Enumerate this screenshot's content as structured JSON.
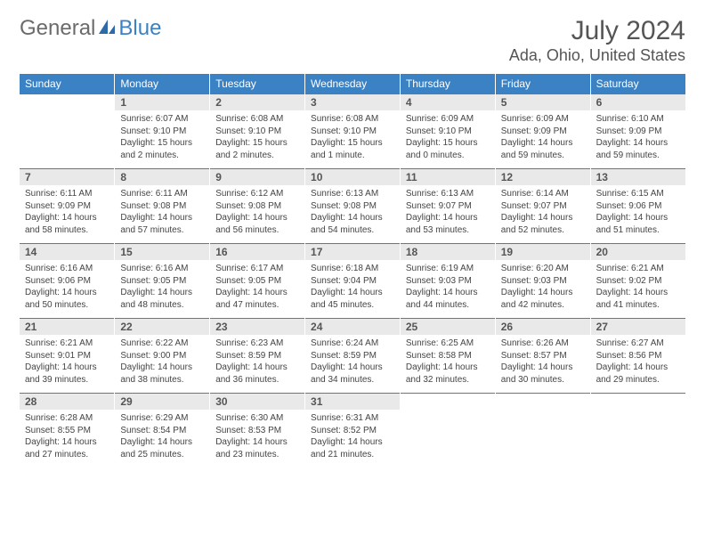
{
  "logo": {
    "main": "General",
    "sub": "Blue",
    "icon_color": "#2f6aa8"
  },
  "title": "July 2024",
  "location": "Ada, Ohio, United States",
  "colors": {
    "header_bg": "#3b82c4",
    "header_fg": "#ffffff",
    "daynum_bg": "#e9e9e9",
    "daynum_fg": "#555555",
    "text": "#444444"
  },
  "dow": [
    "Sunday",
    "Monday",
    "Tuesday",
    "Wednesday",
    "Thursday",
    "Friday",
    "Saturday"
  ],
  "weeks": [
    {
      "nums": [
        "",
        "1",
        "2",
        "3",
        "4",
        "5",
        "6"
      ],
      "cells": [
        "",
        "Sunrise: 6:07 AM\nSunset: 9:10 PM\nDaylight: 15 hours and 2 minutes.",
        "Sunrise: 6:08 AM\nSunset: 9:10 PM\nDaylight: 15 hours and 2 minutes.",
        "Sunrise: 6:08 AM\nSunset: 9:10 PM\nDaylight: 15 hours and 1 minute.",
        "Sunrise: 6:09 AM\nSunset: 9:10 PM\nDaylight: 15 hours and 0 minutes.",
        "Sunrise: 6:09 AM\nSunset: 9:09 PM\nDaylight: 14 hours and 59 minutes.",
        "Sunrise: 6:10 AM\nSunset: 9:09 PM\nDaylight: 14 hours and 59 minutes."
      ]
    },
    {
      "nums": [
        "7",
        "8",
        "9",
        "10",
        "11",
        "12",
        "13"
      ],
      "cells": [
        "Sunrise: 6:11 AM\nSunset: 9:09 PM\nDaylight: 14 hours and 58 minutes.",
        "Sunrise: 6:11 AM\nSunset: 9:08 PM\nDaylight: 14 hours and 57 minutes.",
        "Sunrise: 6:12 AM\nSunset: 9:08 PM\nDaylight: 14 hours and 56 minutes.",
        "Sunrise: 6:13 AM\nSunset: 9:08 PM\nDaylight: 14 hours and 54 minutes.",
        "Sunrise: 6:13 AM\nSunset: 9:07 PM\nDaylight: 14 hours and 53 minutes.",
        "Sunrise: 6:14 AM\nSunset: 9:07 PM\nDaylight: 14 hours and 52 minutes.",
        "Sunrise: 6:15 AM\nSunset: 9:06 PM\nDaylight: 14 hours and 51 minutes."
      ]
    },
    {
      "nums": [
        "14",
        "15",
        "16",
        "17",
        "18",
        "19",
        "20"
      ],
      "cells": [
        "Sunrise: 6:16 AM\nSunset: 9:06 PM\nDaylight: 14 hours and 50 minutes.",
        "Sunrise: 6:16 AM\nSunset: 9:05 PM\nDaylight: 14 hours and 48 minutes.",
        "Sunrise: 6:17 AM\nSunset: 9:05 PM\nDaylight: 14 hours and 47 minutes.",
        "Sunrise: 6:18 AM\nSunset: 9:04 PM\nDaylight: 14 hours and 45 minutes.",
        "Sunrise: 6:19 AM\nSunset: 9:03 PM\nDaylight: 14 hours and 44 minutes.",
        "Sunrise: 6:20 AM\nSunset: 9:03 PM\nDaylight: 14 hours and 42 minutes.",
        "Sunrise: 6:21 AM\nSunset: 9:02 PM\nDaylight: 14 hours and 41 minutes."
      ]
    },
    {
      "nums": [
        "21",
        "22",
        "23",
        "24",
        "25",
        "26",
        "27"
      ],
      "cells": [
        "Sunrise: 6:21 AM\nSunset: 9:01 PM\nDaylight: 14 hours and 39 minutes.",
        "Sunrise: 6:22 AM\nSunset: 9:00 PM\nDaylight: 14 hours and 38 minutes.",
        "Sunrise: 6:23 AM\nSunset: 8:59 PM\nDaylight: 14 hours and 36 minutes.",
        "Sunrise: 6:24 AM\nSunset: 8:59 PM\nDaylight: 14 hours and 34 minutes.",
        "Sunrise: 6:25 AM\nSunset: 8:58 PM\nDaylight: 14 hours and 32 minutes.",
        "Sunrise: 6:26 AM\nSunset: 8:57 PM\nDaylight: 14 hours and 30 minutes.",
        "Sunrise: 6:27 AM\nSunset: 8:56 PM\nDaylight: 14 hours and 29 minutes."
      ]
    },
    {
      "nums": [
        "28",
        "29",
        "30",
        "31",
        "",
        "",
        ""
      ],
      "cells": [
        "Sunrise: 6:28 AM\nSunset: 8:55 PM\nDaylight: 14 hours and 27 minutes.",
        "Sunrise: 6:29 AM\nSunset: 8:54 PM\nDaylight: 14 hours and 25 minutes.",
        "Sunrise: 6:30 AM\nSunset: 8:53 PM\nDaylight: 14 hours and 23 minutes.",
        "Sunrise: 6:31 AM\nSunset: 8:52 PM\nDaylight: 14 hours and 21 minutes.",
        "",
        "",
        ""
      ]
    }
  ]
}
